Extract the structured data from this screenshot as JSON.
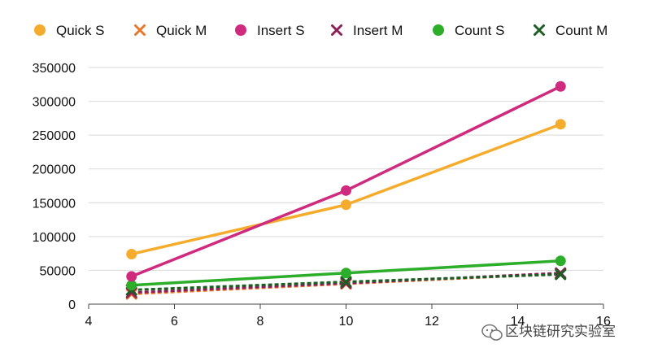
{
  "chart_data": {
    "type": "line",
    "title": "",
    "xlabel": "",
    "ylabel": "",
    "xlim": [
      4,
      16
    ],
    "ylim": [
      0,
      350000
    ],
    "x_ticks": [
      4,
      6,
      8,
      10,
      12,
      14,
      16
    ],
    "y_ticks": [
      0,
      50000,
      100000,
      150000,
      200000,
      250000,
      300000,
      350000
    ],
    "grid": "horizontal",
    "legend_position": "top",
    "series": [
      {
        "name": "Quick S",
        "marker": "circle",
        "dash": "solid",
        "color": "#F5AC2C",
        "x": [
          5,
          10,
          15
        ],
        "y": [
          74000,
          147000,
          266000
        ]
      },
      {
        "name": "Quick M",
        "marker": "x",
        "dash": "dashed",
        "color": "#E9762B",
        "x": [
          5,
          10,
          15
        ],
        "y": [
          15000,
          30000,
          45000
        ]
      },
      {
        "name": "Insert S",
        "marker": "circle",
        "dash": "solid",
        "color": "#CF2A7D",
        "x": [
          5,
          10,
          15
        ],
        "y": [
          41000,
          168000,
          322000
        ]
      },
      {
        "name": "Insert M",
        "marker": "x",
        "dash": "dashed",
        "color": "#8E1E55",
        "x": [
          5,
          10,
          15
        ],
        "y": [
          17000,
          31000,
          46000
        ]
      },
      {
        "name": "Count S",
        "marker": "circle",
        "dash": "solid",
        "color": "#2DAE2A",
        "x": [
          5,
          10,
          15
        ],
        "y": [
          28000,
          46000,
          64000
        ]
      },
      {
        "name": "Count M",
        "marker": "x",
        "dash": "dashed",
        "color": "#1A5E22",
        "x": [
          5,
          10,
          15
        ],
        "y": [
          21000,
          33000,
          44000
        ]
      }
    ]
  },
  "watermark": {
    "text": "区块链研究实验室",
    "icon": "wechat-icon"
  }
}
